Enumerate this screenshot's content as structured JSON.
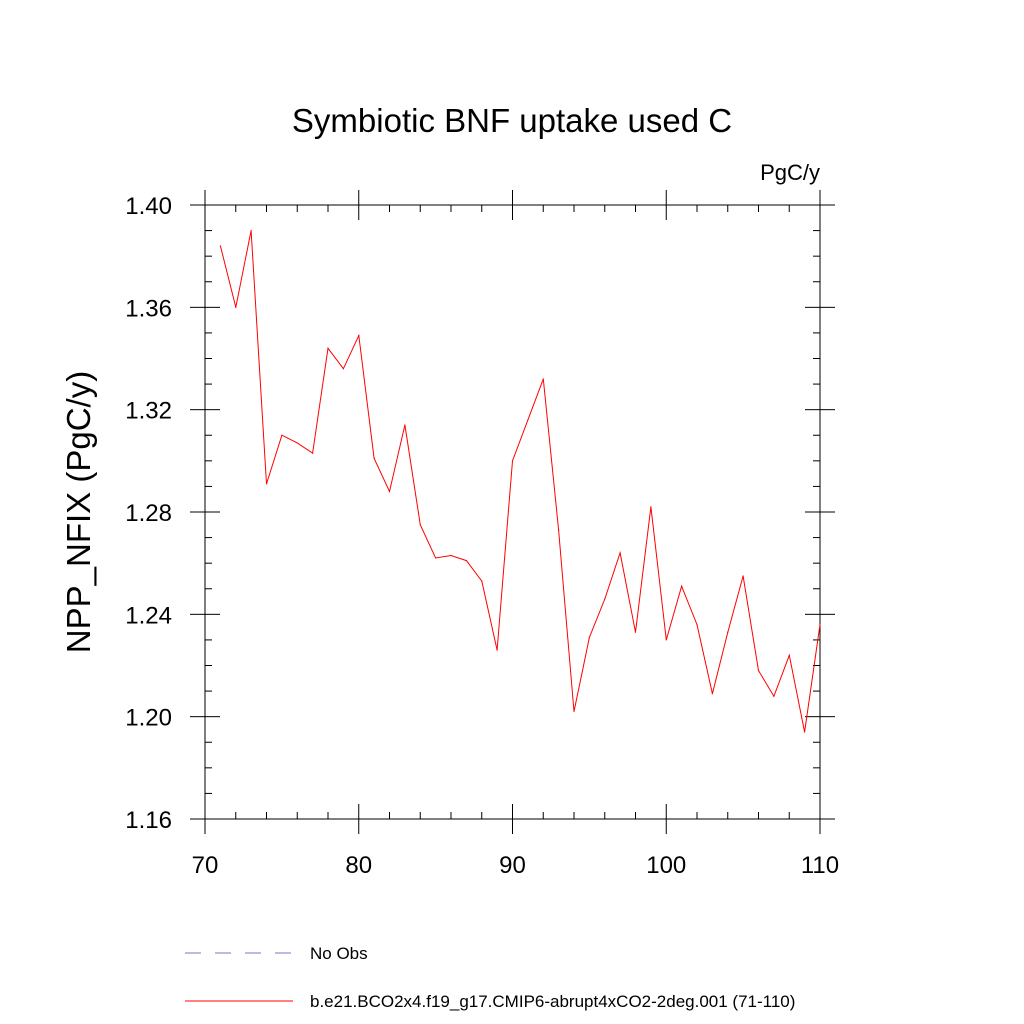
{
  "chart_data": {
    "type": "line",
    "title": "Symbiotic BNF uptake used C",
    "units": "PgC/y",
    "xlabel": "",
    "ylabel": "NPP_NFIX  (PgC/y)",
    "xlim": [
      70,
      110
    ],
    "ylim": [
      1.16,
      1.4
    ],
    "xticks": [
      70,
      80,
      90,
      100,
      110
    ],
    "xtick_labels": [
      "70",
      "80",
      "90",
      "100",
      "110"
    ],
    "yticks": [
      1.16,
      1.2,
      1.24,
      1.28,
      1.32,
      1.36,
      1.4
    ],
    "ytick_labels": [
      "1.16",
      "1.20",
      "1.24",
      "1.28",
      "1.32",
      "1.36",
      "1.40"
    ],
    "x_minor_step": 2,
    "y_minor_step": 0.01,
    "grid": false,
    "series": [
      {
        "name": "b.e21.BCO2x4.f19_g17.CMIP6-abrupt4xCO2-2deg.001 (71-110)",
        "color": "#ff0000",
        "style": "solid",
        "x": [
          71,
          72,
          73,
          74,
          75,
          76,
          77,
          78,
          79,
          80,
          81,
          82,
          83,
          84,
          85,
          86,
          87,
          88,
          89,
          90,
          91,
          92,
          93,
          94,
          95,
          96,
          97,
          98,
          99,
          100,
          101,
          102,
          103,
          104,
          105,
          106,
          107,
          108,
          109,
          110
        ],
        "values": [
          1.384,
          1.36,
          1.39,
          1.291,
          1.31,
          1.307,
          1.303,
          1.344,
          1.336,
          1.349,
          1.301,
          1.288,
          1.314,
          1.275,
          1.262,
          1.263,
          1.261,
          1.253,
          1.226,
          1.3,
          1.316,
          1.332,
          1.273,
          1.202,
          1.231,
          1.246,
          1.264,
          1.233,
          1.282,
          1.23,
          1.251,
          1.236,
          1.209,
          1.233,
          1.255,
          1.218,
          1.208,
          1.224,
          1.194,
          1.236
        ]
      }
    ],
    "legend": [
      {
        "label": "No Obs",
        "color": "#7b73c8",
        "style": "dashed"
      },
      {
        "label": "b.e21.BCO2x4.f19_g17.CMIP6-abrupt4xCO2-2deg.001 (71-110)",
        "color": "#ff0000",
        "style": "solid"
      }
    ]
  }
}
